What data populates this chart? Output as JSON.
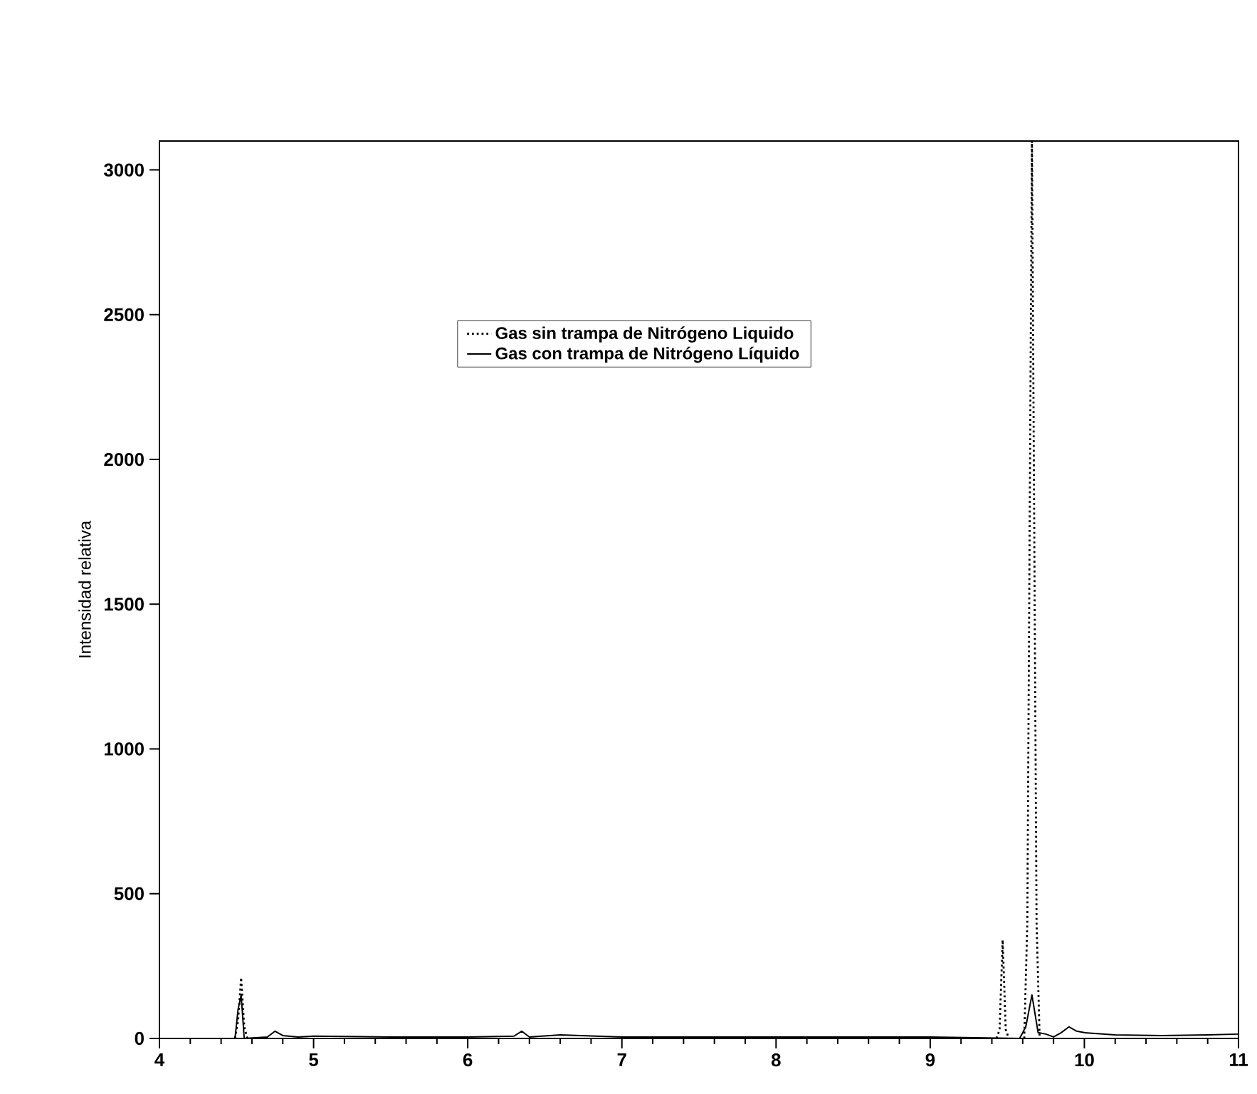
{
  "chart_data": {
    "type": "line",
    "ylabel": "Intensidad relativa",
    "xlim": [
      4,
      11
    ],
    "xticks": [
      4,
      5,
      6,
      7,
      8,
      9,
      10,
      11
    ],
    "ylim": [
      0,
      3100
    ],
    "yticks": [
      0,
      500,
      1000,
      1500,
      2000,
      2500,
      3000
    ],
    "legend": "top",
    "grid": false,
    "marker": "none",
    "series": [
      {
        "name": "Gas sin trampa de Nitrógeno Liquido",
        "color": "#000000",
        "line_style": "dotted",
        "x": [
          4.49,
          4.51,
          4.53,
          4.55,
          4.57,
          7,
          9.43,
          9.45,
          9.47,
          9.49,
          9.51,
          9.55,
          9.61,
          9.63,
          9.66,
          9.69,
          9.71
        ],
        "values": [
          0,
          60,
          210,
          40,
          0,
          null,
          0,
          30,
          340,
          30,
          0,
          null,
          0,
          400,
          3100,
          400,
          0
        ]
      },
      {
        "name": "Gas con trampa de Nitrógeno Líquido",
        "color": "#000000",
        "line_style": "solid",
        "x": [
          4,
          4.45,
          4.49,
          4.51,
          4.53,
          4.55,
          4.7,
          4.75,
          4.8,
          4.9,
          5,
          5.5,
          6,
          6.3,
          6.35,
          6.4,
          6.6,
          7,
          8,
          9,
          9.58,
          9.62,
          9.66,
          9.7,
          9.75,
          9.8,
          9.85,
          9.9,
          9.95,
          10,
          10.2,
          10.5,
          10.8,
          11
        ],
        "values": [
          0,
          0,
          0,
          100,
          150,
          0,
          5,
          25,
          10,
          5,
          8,
          5,
          5,
          8,
          25,
          5,
          12,
          5,
          5,
          5,
          0,
          40,
          150,
          20,
          15,
          5,
          20,
          40,
          25,
          20,
          12,
          10,
          12,
          15
        ]
      }
    ]
  }
}
